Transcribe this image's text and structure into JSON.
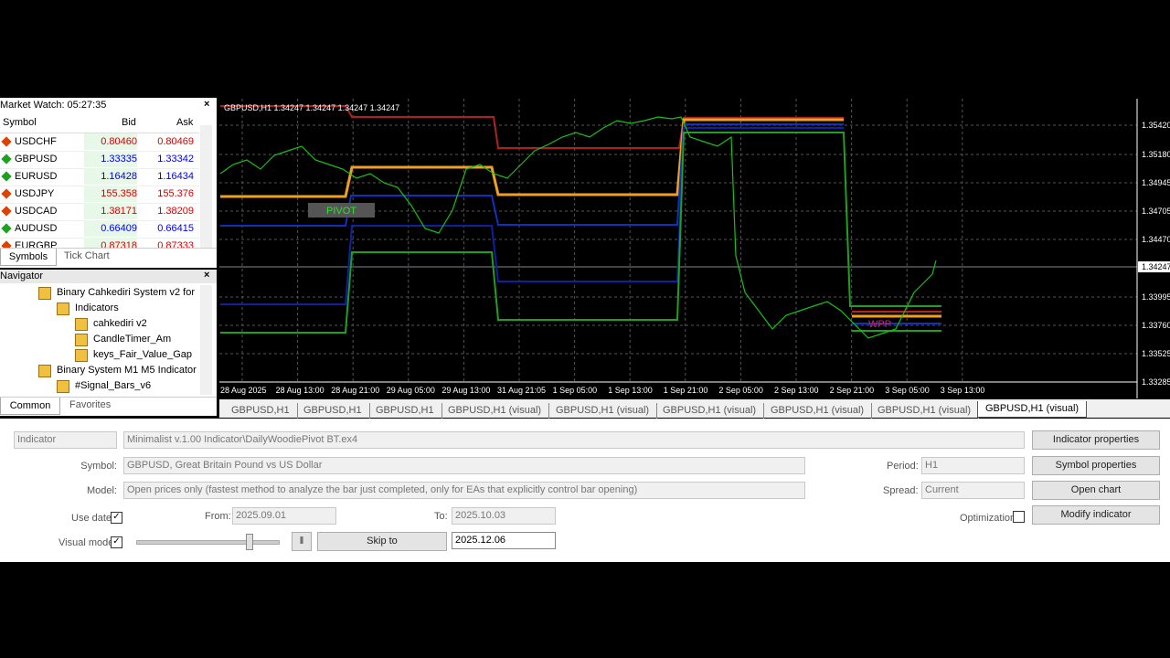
{
  "market_watch": {
    "title": "Market Watch: 05:27:35",
    "columns": [
      "Symbol",
      "Bid",
      "Ask"
    ],
    "rows": [
      {
        "symbol": "USDCHF",
        "bid": "0.80460",
        "ask": "0.80469",
        "color": "#d40000",
        "icon": "#e04000"
      },
      {
        "symbol": "GBPUSD",
        "bid": "1.33335",
        "ask": "1.33342",
        "color": "#0000e0",
        "icon": "#20a020"
      },
      {
        "symbol": "EURUSD",
        "bid": "1.16428",
        "ask": "1.16434",
        "color": "#0000e0",
        "icon": "#20a020"
      },
      {
        "symbol": "USDJPY",
        "bid": "155.358",
        "ask": "155.376",
        "color": "#d40000",
        "icon": "#e04000"
      },
      {
        "symbol": "USDCAD",
        "bid": "1.38171",
        "ask": "1.38209",
        "color": "#d40000",
        "icon": "#e04000"
      },
      {
        "symbol": "AUDUSD",
        "bid": "0.66409",
        "ask": "0.66415",
        "color": "#0000e0",
        "icon": "#20a020"
      },
      {
        "symbol": "EURGBP",
        "bid": "0.87318",
        "ask": "0.87333",
        "color": "#d40000",
        "icon": "#e04000"
      }
    ],
    "tabs": [
      "Symbols",
      "Tick Chart"
    ]
  },
  "navigator": {
    "title": "Navigator",
    "items": [
      {
        "label": "Binary Cahkediri System v2 for",
        "level": 1
      },
      {
        "label": "Indicators",
        "level": 2
      },
      {
        "label": "cahkediri v2",
        "level": 3
      },
      {
        "label": "CandleTimer_Am",
        "level": 3
      },
      {
        "label": "keys_Fair_Value_Gap",
        "level": 3
      },
      {
        "label": "Binary System M1 M5 Indicator",
        "level": 1
      },
      {
        "label": "#Signal_Bars_v6",
        "level": 2
      }
    ],
    "tabs": [
      "Common",
      "Favorites"
    ]
  },
  "chart": {
    "header": "GBPUSD,H1  1.34247 1.34247 1.34247 1.34247",
    "pivot_label": "PIVOT",
    "wpp_label": "WPP",
    "price_labels": [
      "1.35420",
      "1.35180",
      "1.34945",
      "1.34705",
      "1.34470",
      "1.34247",
      "1.33995",
      "1.33760",
      "1.33525",
      "1.33285"
    ],
    "time_labels": [
      "28 Aug 2025",
      "28 Aug 13:00",
      "28 Aug 21:00",
      "29 Aug 05:00",
      "29 Aug 13:00",
      "31 Aug 21:05",
      "1 Sep 05:00",
      "1 Sep 13:00",
      "1 Sep 21:00",
      "2 Sep 05:00",
      "2 Sep 13:00",
      "2 Sep 21:00",
      "3 Sep 05:00",
      "3 Sep 13:00"
    ]
  },
  "chart_tabs": [
    "GBPUSD,H1",
    "GBPUSD,H1",
    "GBPUSD,H1",
    "GBPUSD,H1 (visual)",
    "GBPUSD,H1 (visual)",
    "GBPUSD,H1 (visual)",
    "GBPUSD,H1 (visual)",
    "GBPUSD,H1 (visual)",
    "GBPUSD,H1 (visual)"
  ],
  "tester": {
    "type": "Indicator",
    "indicator": "Minimalist v.1.00 Indicator\\DailyWoodiePivot BT.ex4",
    "symbol_label": "Symbol:",
    "symbol": "GBPUSD, Great Britain Pound vs US Dollar",
    "model_label": "Model:",
    "model": "Open prices only (fastest method to analyze the bar just completed, only for EAs that explicitly control bar opening)",
    "use_date_label": "Use date",
    "from_label": "From:",
    "from": "2025.09.01",
    "to_label": "To:",
    "to": "2025.10.03",
    "visual_mode_label": "Visual mode",
    "skip_to": "Skip to",
    "skip_date": "2025.12.06",
    "period_label": "Period:",
    "period": "H1",
    "spread_label": "Spread:",
    "spread": "Current",
    "optimization_label": "Optimization",
    "buttons": [
      "Indicator properties",
      "Symbol properties",
      "Open chart",
      "Modify indicator"
    ]
  }
}
